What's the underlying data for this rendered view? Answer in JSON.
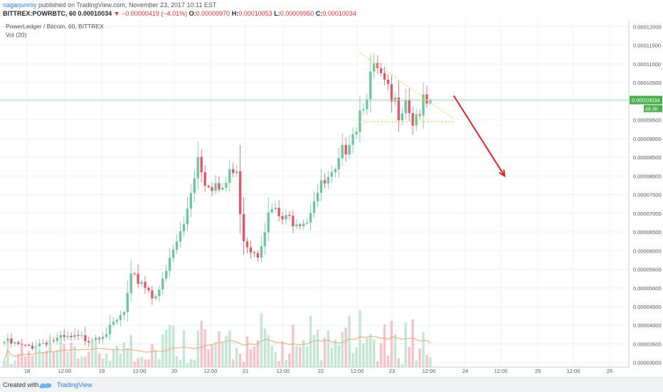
{
  "header": {
    "user": "nagarjunroy",
    "published": "published on TradingView.com, November 23, 2017 10:11 EST",
    "symbol": "BITTREX:POWRBTC, 60",
    "last": "0.00010034",
    "change": "▼ −0.00000419 (−4.01%)",
    "o_label": "O:",
    "o": "0.00009970",
    "h_label": "H:",
    "h": "0.00010053",
    "l_label": "L:",
    "l": "0.00009950",
    "c_label": "C:",
    "c": "0.00010034"
  },
  "overlay": {
    "title": "PowerLedger / Bitcoin, 60, BITTREX",
    "volume": "Vol (20)"
  },
  "footer": {
    "created": "Created with",
    "brand": "TradingView"
  },
  "colors": {
    "up": "#6ec69a",
    "down": "#e0586a",
    "vol_up": "#b8e3cc",
    "vol_down": "#f5b8c2",
    "vol_ma": "#f4a373",
    "trend": "#f2d26a",
    "arrow": "#e02424",
    "price_label": "#4caf50"
  },
  "chart_data": {
    "type": "candlestick",
    "symbol": "BITTREX:POWRBTC",
    "interval": "60",
    "x_ticks": [
      "18",
      "12:00",
      "19",
      "12:00",
      "20",
      "12:00",
      "21",
      "12:00",
      "22",
      "12:00",
      "23",
      "12:00",
      "24",
      "12:00",
      "25",
      "12:00",
      "26"
    ],
    "y_ticks": [
      "0.00012000",
      "0.00011500",
      "0.00011000",
      "0.00010500",
      "0.00010000",
      "0.00009500",
      "0.00009000",
      "0.00008500",
      "0.00008000",
      "0.00007500",
      "0.00007000",
      "0.00006500",
      "0.00006000",
      "0.00005500",
      "0.00005000",
      "0.00004500",
      "0.00004000",
      "0.00003500",
      "0.00003000"
    ],
    "ylim": [
      2.88e-05,
      0.0001218
    ],
    "last_price_label": "0.00010034",
    "volume_label": "48.3K",
    "anchors": [
      [
        0,
        3.62e-05
      ],
      [
        6,
        3.46e-05
      ],
      [
        12,
        3.65e-05
      ],
      [
        18,
        3.7e-05
      ],
      [
        24,
        3.72e-05
      ],
      [
        30,
        3.95e-05
      ],
      [
        34,
        4.4e-05
      ],
      [
        36,
        5.3e-05
      ],
      [
        39,
        5.3e-05
      ],
      [
        42,
        4.9e-05
      ],
      [
        45,
        5.2e-05
      ],
      [
        48,
        6.1e-05
      ],
      [
        51,
        6.8e-05
      ],
      [
        53,
        7.8e-05
      ],
      [
        55,
        8.7e-05
      ],
      [
        57,
        8.1e-05
      ],
      [
        60,
        7.9e-05
      ],
      [
        62,
        7.6e-05
      ],
      [
        64,
        8.3e-05
      ],
      [
        66,
        8.1e-05
      ],
      [
        68,
        6.5e-05
      ],
      [
        70,
        6.2e-05
      ],
      [
        72,
        6.1e-05
      ],
      [
        74,
        6.8e-05
      ],
      [
        76,
        7.2e-05
      ],
      [
        78,
        7e-05
      ],
      [
        80,
        6.9e-05
      ],
      [
        82,
        7e-05
      ],
      [
        84,
        7e-05
      ],
      [
        86,
        7e-05
      ],
      [
        88,
        7.6e-05
      ],
      [
        91,
        7.9e-05
      ],
      [
        94,
        8.1e-05
      ],
      [
        96,
        8.7e-05
      ],
      [
        98,
        9.3e-05
      ],
      [
        100,
        9.6e-05
      ],
      [
        102,
        0.000103
      ],
      [
        104,
        0.000108
      ],
      [
        106,
        0.0001095
      ],
      [
        108,
        0.000105
      ],
      [
        110,
        0.000101
      ],
      [
        112,
        0.0001
      ],
      [
        114,
        0.000104
      ],
      [
        116,
        9.7e-05
      ],
      [
        118,
        0.0001
      ],
      [
        121,
        0.0001003
      ]
    ],
    "candle_count": 122,
    "annotations": {
      "triangle_upper": [
        [
          101,
          0.000113
        ],
        [
          122,
          9.5e-05
        ]
      ],
      "triangle_lower": [
        [
          101,
          9.45e-05
        ],
        [
          122,
          9.45e-05
        ]
      ],
      "arrow": [
        [
          124,
          0.0001015
        ],
        [
          134,
          8e-05
        ]
      ]
    }
  }
}
